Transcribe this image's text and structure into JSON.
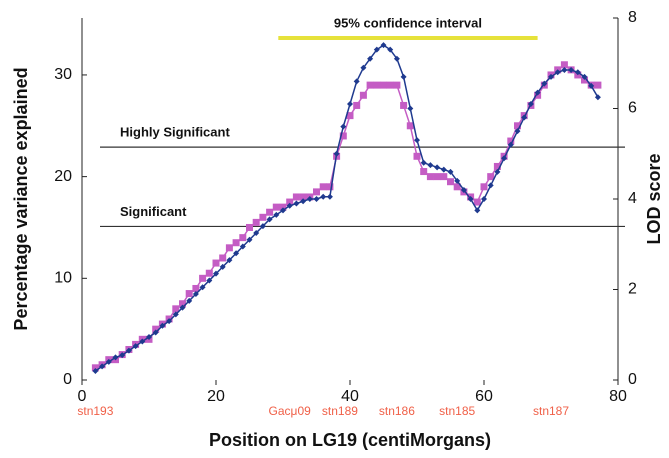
{
  "chart_data": {
    "type": "line",
    "x_label": "Position on LG19 (centiMorgans)",
    "y_label": "Percentage variance explained",
    "y2_label": "LOD score",
    "x": [
      2,
      3,
      4,
      5,
      6,
      7,
      8,
      9,
      10,
      11,
      12,
      13,
      14,
      15,
      16,
      17,
      18,
      19,
      20,
      21,
      22,
      23,
      24,
      25,
      26,
      27,
      28,
      29,
      30,
      31,
      32,
      33,
      34,
      35,
      36,
      37,
      38,
      39,
      40,
      41,
      42,
      43,
      44,
      45,
      46,
      47,
      48,
      49,
      50,
      51,
      52,
      53,
      54,
      55,
      56,
      57,
      58,
      59,
      60,
      61,
      62,
      63,
      64,
      65,
      66,
      67,
      68,
      69,
      70,
      71,
      72,
      73,
      74,
      75,
      76,
      77
    ],
    "series": [
      {
        "name": "Percentage variance explained",
        "color": "#c45cc4",
        "marker": "square",
        "values": [
          1.2,
          1.5,
          2,
          2,
          2.5,
          3,
          3.5,
          4,
          4,
          5,
          5.5,
          6,
          7,
          7.5,
          8.5,
          9,
          10,
          10.5,
          11.5,
          12,
          13,
          13.5,
          14,
          15,
          15.5,
          16,
          16.5,
          17,
          17,
          17.5,
          18,
          18,
          18,
          18.5,
          19,
          19,
          22,
          24,
          26,
          27,
          28,
          29,
          29,
          29,
          29,
          29,
          27,
          25,
          22,
          20.5,
          20,
          20,
          20,
          19.5,
          19,
          18.5,
          18,
          17.5,
          19,
          20,
          21,
          22,
          23.5,
          25,
          26,
          27,
          28,
          29,
          30,
          30.5,
          31,
          30.5,
          30,
          29.5,
          29,
          29
        ]
      },
      {
        "name": "LOD score",
        "color": "#1f3a8f",
        "marker": "diamond",
        "axis": "y2",
        "values": [
          0.2,
          0.3,
          0.4,
          0.5,
          0.55,
          0.65,
          0.75,
          0.85,
          0.95,
          1.05,
          1.2,
          1.3,
          1.45,
          1.6,
          1.75,
          1.9,
          2.05,
          2.2,
          2.35,
          2.5,
          2.65,
          2.8,
          2.95,
          3.1,
          3.25,
          3.4,
          3.55,
          3.65,
          3.75,
          3.85,
          3.9,
          3.95,
          4.0,
          4.0,
          4.05,
          4.05,
          5.0,
          5.6,
          6.1,
          6.6,
          6.9,
          7.1,
          7.3,
          7.4,
          7.3,
          7.1,
          6.7,
          6.0,
          5.3,
          4.8,
          4.75,
          4.7,
          4.65,
          4.6,
          4.4,
          4.2,
          4.0,
          3.75,
          4.0,
          4.3,
          4.6,
          4.9,
          5.2,
          5.5,
          5.8,
          6.1,
          6.35,
          6.55,
          6.7,
          6.8,
          6.85,
          6.85,
          6.8,
          6.7,
          6.5,
          6.25
        ]
      }
    ],
    "xlim": [
      0,
      80
    ],
    "xticks": [
      0,
      20,
      40,
      60,
      80
    ],
    "ylim": [
      0,
      35.6
    ],
    "yticks": [
      0,
      10,
      20,
      30
    ],
    "y2lim": [
      0,
      8
    ],
    "y2ticks": [
      0,
      2,
      4,
      6,
      8
    ],
    "thresholds": [
      {
        "text": "Highly Significant",
        "y": 22.9,
        "color": "#333333"
      },
      {
        "text": "Significant",
        "y": 15.1,
        "color": "#333333"
      }
    ],
    "interval": {
      "text": "95% confidence interval",
      "x": [
        29.3,
        68
      ],
      "color": "#e6e23a"
    },
    "markers": [
      {
        "text": "stn193",
        "x": 2
      },
      {
        "text": "Gacμ09",
        "x": 31
      },
      {
        "text": "stn189",
        "x": 38.5
      },
      {
        "text": "stn186",
        "x": 47
      },
      {
        "text": "stn185",
        "x": 56
      },
      {
        "text": "stn187",
        "x": 70
      }
    ]
  }
}
